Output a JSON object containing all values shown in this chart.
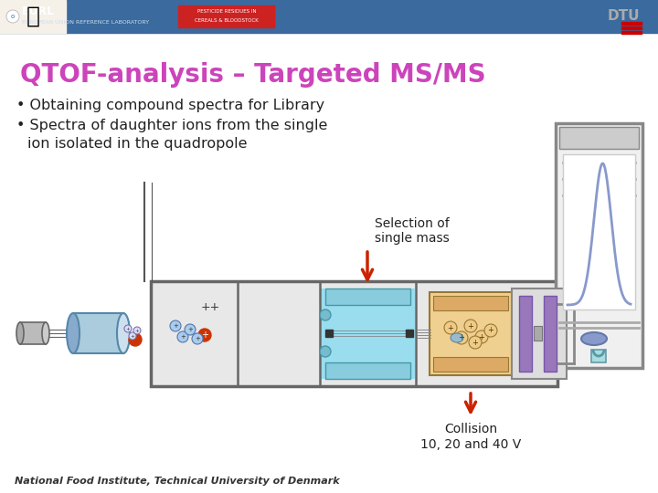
{
  "title": "QTOF-analysis – Targeted MS/MS",
  "title_color": "#cc44bb",
  "bullet1": "Obtaining compound spectra for Library",
  "bullet2_line1": "Spectra of daughter ions from the single",
  "bullet2_line2": "  ion isolated in the quadropole",
  "label_selection": "Selection of\nsingle mass",
  "label_collision": "Collision\n10, 20 and 40 V",
  "label_plusplus": "++",
  "footer": "National Food Institute, Technical University of Denmark",
  "bg_color": "#ffffff",
  "text_color": "#222222",
  "arrow_color": "#cc2200",
  "header_bg": "#3a6a9e",
  "header_text": "#ffffff",
  "eurl_text": "#ffffff",
  "dtu_stripe": "#cc0000",
  "box_edge": "#777777",
  "box_fill": "#e8e8e8",
  "quad_fill": "#99ddee",
  "coll_fill": "#f0d090",
  "tof_fill": "#dddddd",
  "det_fill": "#f0f0f0",
  "peak_color": "#8899cc",
  "purple_rod": "#9977bb"
}
